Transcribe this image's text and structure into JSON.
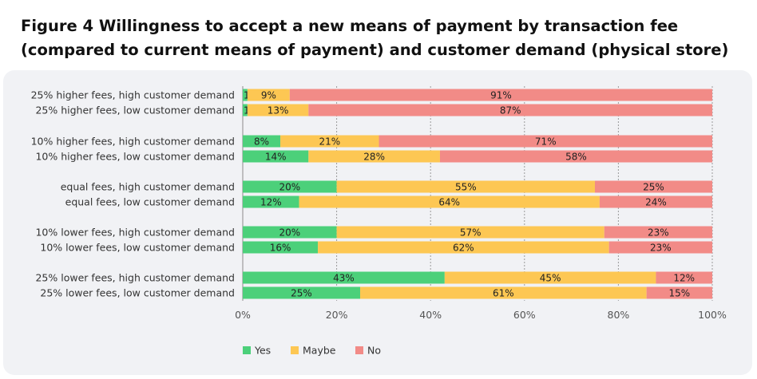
{
  "title": "Figure 4  Willingness to accept a new means of payment by transaction fee (compared to current means of payment) and customer demand (physical store)",
  "chart_data": {
    "type": "bar",
    "orientation": "horizontal",
    "stacked": true,
    "title": "Figure 4  Willingness to accept a new means of payment by transaction fee (compared to current means of payment) and customer demand (physical store)",
    "xlabel": "",
    "ylabel": "",
    "xlim": [
      0,
      100
    ],
    "x_ticks": [
      "0%",
      "20%",
      "40%",
      "60%",
      "80%",
      "100%"
    ],
    "grid": "vertical",
    "legend_position": "bottom",
    "categories": [
      "25% higher fees, high customer demand",
      "25% higher fees, low customer demand",
      "10% higher fees, high customer demand",
      "10% higher fees, low customer demand",
      "equal fees, high customer demand",
      "equal fees, low customer demand",
      "10% lower fees, high customer demand",
      "10% lower fees, low customer demand",
      "25% lower fees, high customer demand",
      "25% lower fees, low customer demand"
    ],
    "series": [
      {
        "name": "Yes",
        "color": "#4cd07a",
        "values": [
          1,
          1,
          8,
          14,
          20,
          12,
          20,
          16,
          43,
          25
        ]
      },
      {
        "name": "Maybe",
        "color": "#fdc753",
        "values": [
          9,
          13,
          21,
          28,
          55,
          64,
          57,
          62,
          45,
          61
        ]
      },
      {
        "name": "No",
        "color": "#f28b87",
        "values": [
          91,
          87,
          71,
          58,
          25,
          24,
          23,
          23,
          12,
          15
        ]
      }
    ],
    "value_labels": [
      [
        "1%",
        "9%",
        "91%"
      ],
      [
        "1%",
        "13%",
        "87%"
      ],
      [
        "8%",
        "21%",
        "71%"
      ],
      [
        "14%",
        "28%",
        "58%"
      ],
      [
        "20%",
        "55%",
        "25%"
      ],
      [
        "12%",
        "64%",
        "24%"
      ],
      [
        "20%",
        "57%",
        "23%"
      ],
      [
        "16%",
        "62%",
        "23%"
      ],
      [
        "43%",
        "45%",
        "12%"
      ],
      [
        "25%",
        "61%",
        "15%"
      ]
    ]
  }
}
